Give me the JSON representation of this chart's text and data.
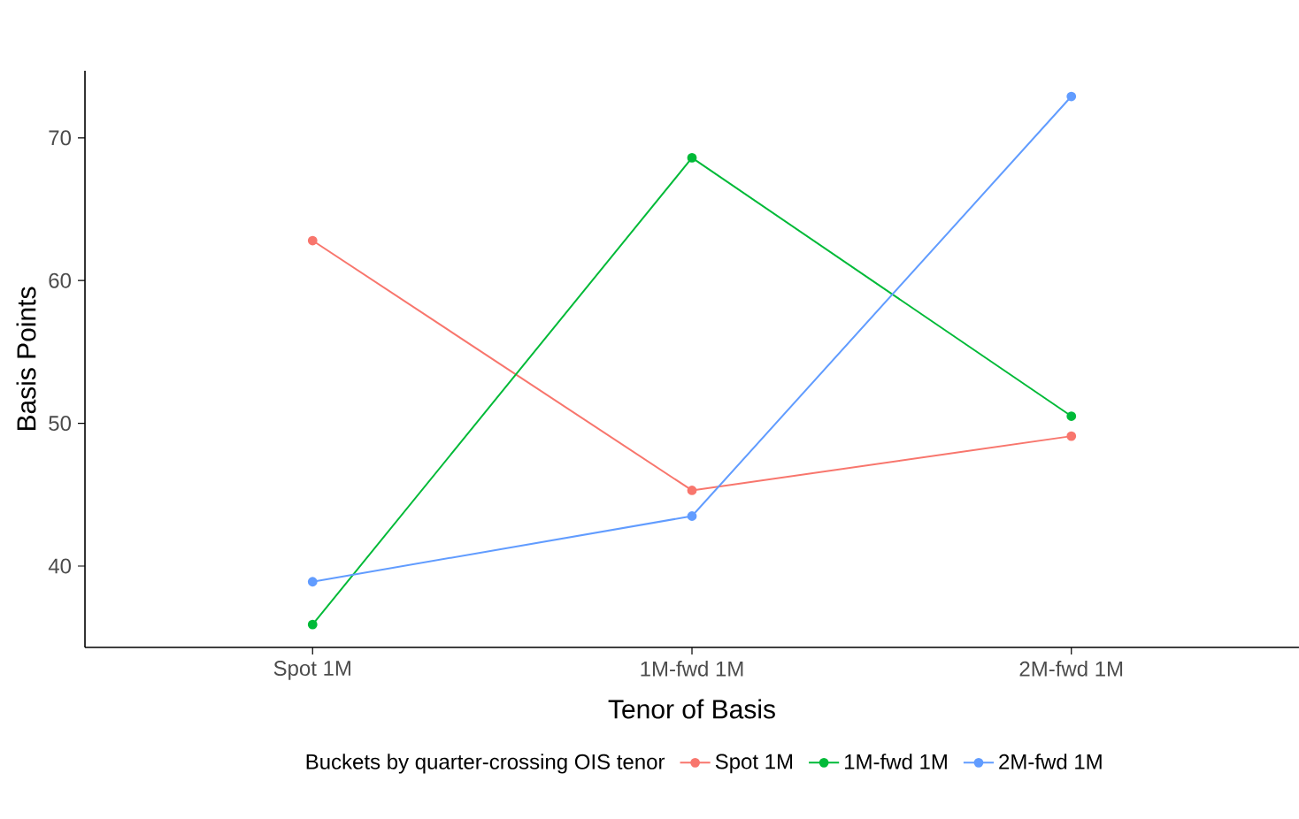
{
  "chart_data": {
    "type": "line",
    "xlabel": "Tenor of Basis",
    "ylabel": "Basis Points",
    "legend_title": "Buckets by quarter-crossing OIS tenor",
    "categories": [
      "Spot 1M",
      "1M-fwd 1M",
      "2M-fwd 1M"
    ],
    "series": [
      {
        "name": "Spot 1M",
        "color": "#f8766d",
        "values": [
          62.8,
          45.3,
          49.1
        ]
      },
      {
        "name": "1M-fwd 1M",
        "color": "#00ba38",
        "values": [
          35.9,
          68.6,
          50.5
        ]
      },
      {
        "name": "2M-fwd 1M",
        "color": "#619cff",
        "values": [
          38.9,
          43.5,
          72.9
        ]
      }
    ],
    "ylim": [
      34.3,
      74.7
    ],
    "yticks": [
      40,
      50,
      60,
      70
    ],
    "grid": false,
    "legend": "bottom",
    "marker": "circle",
    "line_style": "solid"
  }
}
